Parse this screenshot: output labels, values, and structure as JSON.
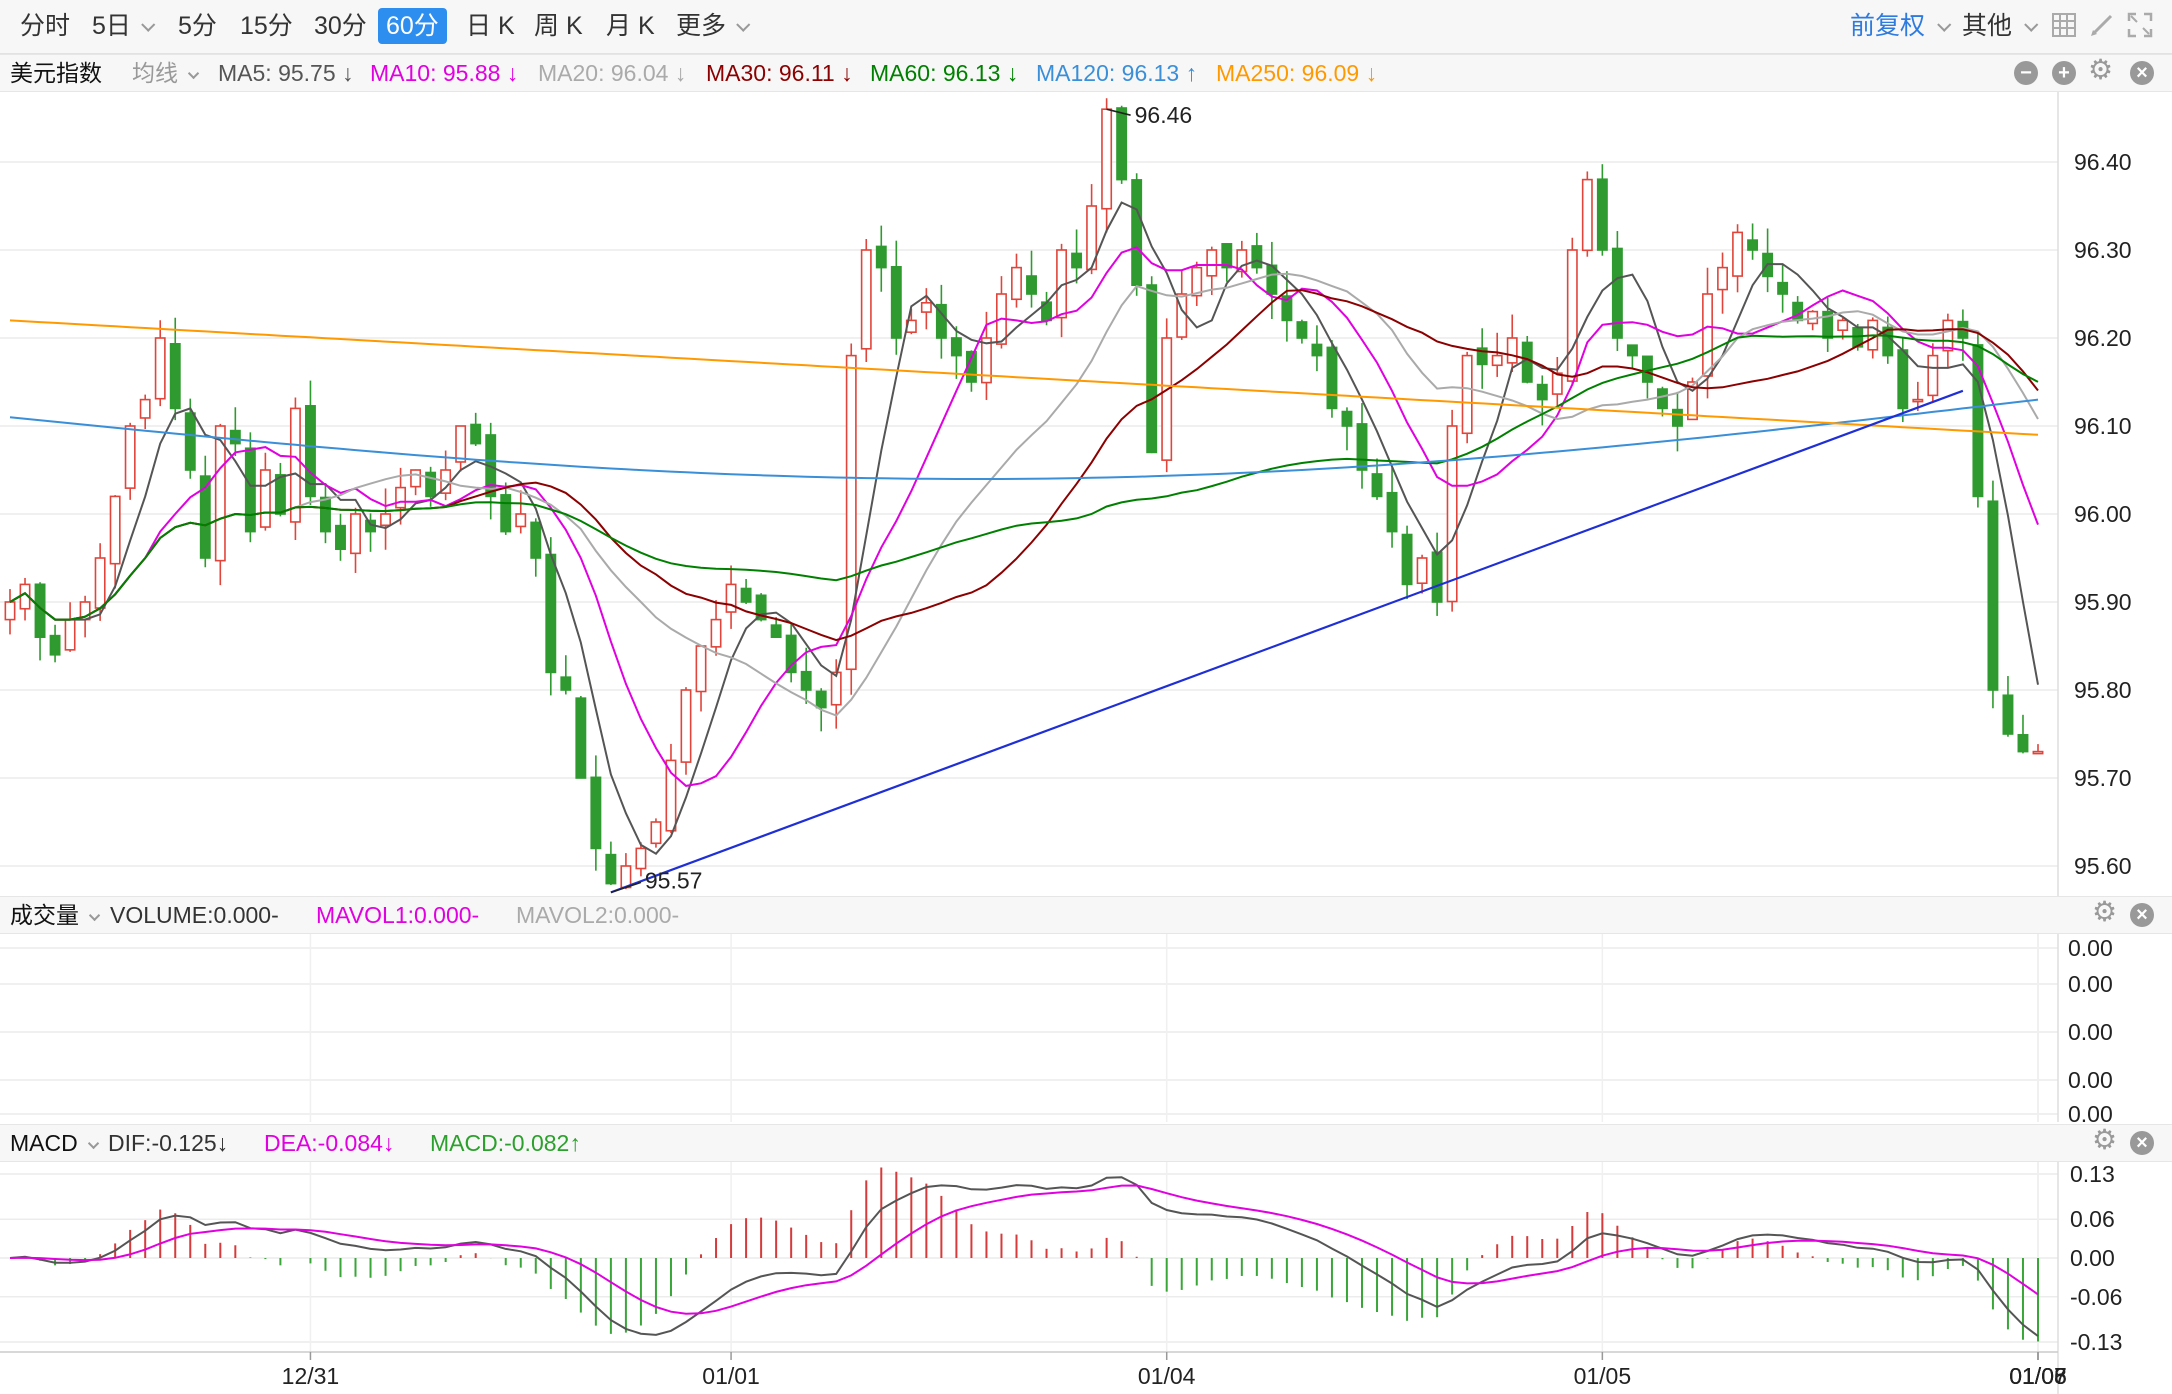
{
  "toolbar": {
    "periods": [
      {
        "label": "分时",
        "active": false,
        "has_caret": false
      },
      {
        "label": "5日",
        "active": false,
        "has_caret": true
      },
      {
        "label": "5分",
        "active": false,
        "has_caret": false
      },
      {
        "label": "15分",
        "active": false,
        "has_caret": false
      },
      {
        "label": "30分",
        "active": false,
        "has_caret": false
      },
      {
        "label": "60分",
        "active": true,
        "has_caret": false
      },
      {
        "label": "日 K",
        "active": false,
        "has_caret": false
      },
      {
        "label": "周 K",
        "active": false,
        "has_caret": false
      },
      {
        "label": "月 K",
        "active": false,
        "has_caret": false
      },
      {
        "label": "更多",
        "active": false,
        "has_caret": true
      }
    ],
    "adjust_label": "前复权",
    "other_label": "其他",
    "icons": [
      "grid-icon",
      "pen-icon",
      "fullscreen-icon"
    ]
  },
  "main_legend": {
    "name": "美元指数",
    "line_type": "均线",
    "items": [
      {
        "text": "MA5: 95.75 ↓",
        "color": "#555555"
      },
      {
        "text": "MA10: 95.88 ↓",
        "color": "#e000e0"
      },
      {
        "text": "MA20: 96.04 ↓",
        "color": "#aaaaaa"
      },
      {
        "text": "MA30: 96.11 ↓",
        "color": "#8b0000"
      },
      {
        "text": "MA60: 96.13 ↓",
        "color": "#008000"
      },
      {
        "text": "MA120: 96.13 ↑",
        "color": "#3a8fd8"
      },
      {
        "text": "MA250: 96.09 ↓",
        "color": "#ff9900"
      }
    ]
  },
  "price_axis": [
    "96.40",
    "96.30",
    "96.20",
    "96.10",
    "96.00",
    "95.90",
    "95.80",
    "95.70",
    "95.60"
  ],
  "annotations": {
    "high": "96.46",
    "low": "95.57"
  },
  "volume_legend": {
    "name": "成交量",
    "items": [
      {
        "text": "VOLUME:0.000-",
        "color": "#333333"
      },
      {
        "text": "MAVOL1:0.000-",
        "color": "#e000e0"
      },
      {
        "text": "MAVOL2:0.000-",
        "color": "#aaaaaa"
      }
    ]
  },
  "volume_axis": [
    "0.00",
    "0.00",
    "0.00",
    "0.00",
    "0.00"
  ],
  "macd_legend": {
    "name": "MACD",
    "items": [
      {
        "text": "DIF:-0.125↓",
        "color": "#333333"
      },
      {
        "text": "DEA:-0.084↓",
        "color": "#e000e0"
      },
      {
        "text": "MACD:-0.082↑",
        "color": "#2ca02c"
      }
    ]
  },
  "macd_axis": [
    "0.13",
    "0.06",
    "0.00",
    "-0.06",
    "-0.13"
  ],
  "date_axis": [
    "12/31",
    "01/01",
    "01/04",
    "01/05",
    "01/06",
    "01/07",
    "01/08"
  ],
  "chart_data": {
    "type": "candlestick",
    "title": "美元指数",
    "interval": "60分",
    "ylim": [
      95.56,
      96.48
    ],
    "x_tick_labels": [
      "12/31",
      "01/01",
      "01/04",
      "01/05",
      "01/06",
      "01/07",
      "01/08"
    ],
    "close": [
      95.9,
      95.92,
      95.86,
      95.84,
      95.88,
      95.9,
      95.95,
      96.02,
      96.1,
      96.13,
      96.2,
      96.12,
      96.05,
      95.95,
      96.1,
      96.08,
      95.98,
      96.05,
      96.0,
      96.12,
      96.02,
      95.98,
      95.96,
      96.0,
      95.98,
      96.0,
      96.03,
      96.05,
      96.02,
      96.05,
      96.1,
      96.08,
      96.02,
      95.98,
      96.0,
      95.95,
      95.82,
      95.8,
      95.7,
      95.62,
      95.58,
      95.6,
      95.62,
      95.65,
      95.72,
      95.8,
      95.85,
      95.88,
      95.92,
      95.9,
      95.88,
      95.86,
      95.82,
      95.8,
      95.78,
      95.82,
      96.18,
      96.3,
      96.28,
      96.2,
      96.22,
      96.24,
      96.2,
      96.18,
      96.15,
      96.2,
      96.25,
      96.28,
      96.25,
      96.22,
      96.3,
      96.28,
      96.35,
      96.46,
      96.38,
      96.26,
      96.07,
      96.2,
      96.25,
      96.28,
      96.3,
      96.28,
      96.3,
      96.28,
      96.25,
      96.22,
      96.2,
      96.18,
      96.12,
      96.1,
      96.05,
      96.02,
      95.98,
      95.92,
      95.95,
      95.9,
      96.1,
      96.18,
      96.17,
      96.18,
      96.2,
      96.15,
      96.13,
      96.16,
      96.3,
      96.38,
      96.3,
      96.2,
      96.18,
      96.15,
      96.12,
      96.1,
      96.15,
      96.25,
      96.28,
      96.32,
      96.3,
      96.27,
      96.25,
      96.22,
      96.23,
      96.2,
      96.22,
      96.19,
      96.22,
      96.18,
      96.12,
      96.13,
      96.18,
      96.22,
      96.2,
      96.02,
      95.8,
      95.75,
      95.73,
      95.73
    ],
    "ma_lines": [
      {
        "name": "MA5",
        "value": 95.75
      },
      {
        "name": "MA10",
        "value": 95.88
      },
      {
        "name": "MA20",
        "value": 96.04
      },
      {
        "name": "MA30",
        "value": 96.11
      },
      {
        "name": "MA60",
        "value": 96.13
      },
      {
        "name": "MA120",
        "value": 96.13
      },
      {
        "name": "MA250",
        "value": 96.09
      }
    ],
    "annotations": {
      "high": 96.46,
      "low": 95.57
    },
    "macd": {
      "dif": -0.125,
      "dea": -0.084,
      "macd": -0.082,
      "ylim": [
        -0.13,
        0.13
      ]
    },
    "volume": {
      "value": 0.0
    }
  }
}
